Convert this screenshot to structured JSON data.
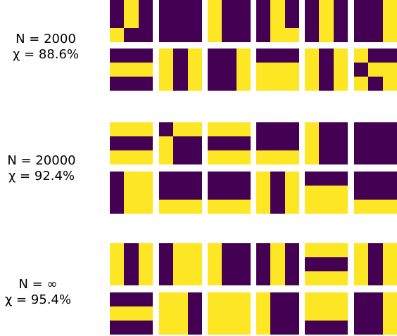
{
  "colors": {
    "purple": "#440154",
    "yellow": "#fde725"
  },
  "groups": [
    {
      "label_n": "N = 2000",
      "label_chi": "χ = 88.6%",
      "rows": [
        [
          [
            [
              0,
              1,
              0
            ],
            [
              0,
              1,
              0
            ],
            [
              1,
              0,
              0
            ]
          ],
          [
            [
              0,
              0,
              0
            ],
            [
              0,
              0,
              0
            ],
            [
              0,
              0,
              0
            ]
          ],
          [
            [
              1,
              0,
              0
            ],
            [
              1,
              0,
              0
            ],
            [
              1,
              0,
              0
            ]
          ],
          [
            [
              0,
              1,
              0
            ],
            [
              0,
              1,
              0
            ],
            [
              0,
              1,
              1
            ]
          ],
          [
            [
              0,
              1,
              0
            ],
            [
              0,
              1,
              0
            ],
            [
              0,
              1,
              0
            ]
          ],
          [
            [
              0,
              0,
              1
            ],
            [
              0,
              0,
              1
            ],
            [
              0,
              0,
              1
            ]
          ]
        ],
        [
          [
            [
              0,
              0,
              0
            ],
            [
              1,
              1,
              1
            ],
            [
              0,
              0,
              0
            ]
          ],
          [
            [
              1,
              0,
              1
            ],
            [
              1,
              0,
              1
            ],
            [
              1,
              0,
              1
            ]
          ],
          [
            [
              0,
              0,
              1
            ],
            [
              0,
              0,
              1
            ],
            [
              0,
              0,
              1
            ]
          ],
          [
            [
              0,
              0,
              0
            ],
            [
              1,
              1,
              1
            ],
            [
              1,
              1,
              1
            ]
          ],
          [
            [
              1,
              0,
              1
            ],
            [
              1,
              0,
              1
            ],
            [
              1,
              0,
              1
            ]
          ],
          [
            [
              1,
              0,
              0
            ],
            [
              0,
              1,
              1
            ],
            [
              1,
              0,
              1
            ]
          ]
        ]
      ]
    },
    {
      "label_n": "N = 20000",
      "label_chi": "χ = 92.4%",
      "rows": [
        [
          [
            [
              1,
              1,
              1
            ],
            [
              0,
              0,
              0
            ],
            [
              1,
              1,
              1
            ]
          ],
          [
            [
              0,
              1,
              1
            ],
            [
              1,
              0,
              0
            ],
            [
              1,
              0,
              0
            ]
          ],
          [
            [
              1,
              1,
              1
            ],
            [
              0,
              0,
              0
            ],
            [
              1,
              1,
              1
            ]
          ],
          [
            [
              0,
              0,
              0
            ],
            [
              0,
              0,
              0
            ],
            [
              1,
              1,
              1
            ]
          ],
          [
            [
              1,
              0,
              0
            ],
            [
              1,
              0,
              0
            ],
            [
              1,
              0,
              0
            ]
          ],
          [
            [
              0,
              0,
              0
            ],
            [
              0,
              0,
              0
            ],
            [
              0,
              0,
              0
            ]
          ]
        ],
        [
          [
            [
              0,
              1,
              1
            ],
            [
              0,
              1,
              1
            ],
            [
              0,
              1,
              1
            ]
          ],
          [
            [
              0,
              0,
              0
            ],
            [
              0,
              0,
              0
            ],
            [
              1,
              1,
              1
            ]
          ],
          [
            [
              0,
              0,
              0
            ],
            [
              0,
              0,
              0
            ],
            [
              1,
              1,
              1
            ]
          ],
          [
            [
              1,
              0,
              1
            ],
            [
              1,
              0,
              1
            ],
            [
              1,
              0,
              1
            ]
          ],
          [
            [
              0,
              0,
              0
            ],
            [
              1,
              1,
              1
            ],
            [
              1,
              1,
              1
            ]
          ],
          [
            [
              0,
              0,
              0
            ],
            [
              0,
              0,
              0
            ],
            [
              1,
              1,
              1
            ]
          ]
        ]
      ]
    },
    {
      "label_n": "N = ∞",
      "label_chi": "χ = 95.4%",
      "rows": [
        [
          [
            [
              1,
              0,
              1
            ],
            [
              1,
              0,
              1
            ],
            [
              1,
              0,
              1
            ]
          ],
          [
            [
              0,
              1,
              1
            ],
            [
              0,
              1,
              1
            ],
            [
              0,
              1,
              1
            ]
          ],
          [
            [
              1,
              0,
              0
            ],
            [
              1,
              0,
              0
            ],
            [
              1,
              0,
              0
            ]
          ],
          [
            [
              0,
              1,
              0
            ],
            [
              0,
              1,
              0
            ],
            [
              0,
              1,
              0
            ]
          ],
          [
            [
              1,
              1,
              1
            ],
            [
              0,
              0,
              0
            ],
            [
              1,
              1,
              1
            ]
          ],
          [
            [
              1,
              0,
              1
            ],
            [
              1,
              0,
              1
            ],
            [
              1,
              0,
              1
            ]
          ]
        ],
        [
          [
            [
              0,
              0,
              0
            ],
            [
              1,
              1,
              1
            ],
            [
              0,
              0,
              0
            ]
          ],
          [
            [
              1,
              1,
              0
            ],
            [
              1,
              1,
              0
            ],
            [
              1,
              1,
              0
            ]
          ],
          [
            [
              1,
              1,
              1
            ],
            [
              1,
              1,
              1
            ],
            [
              1,
              1,
              1
            ]
          ],
          [
            [
              1,
              0,
              0
            ],
            [
              1,
              0,
              0
            ],
            [
              1,
              0,
              0
            ]
          ],
          [
            [
              1,
              1,
              1
            ],
            [
              1,
              1,
              1
            ],
            [
              0,
              0,
              0
            ]
          ],
          [
            [
              0,
              0,
              1
            ],
            [
              0,
              0,
              1
            ],
            [
              0,
              0,
              1
            ]
          ]
        ]
      ]
    }
  ]
}
